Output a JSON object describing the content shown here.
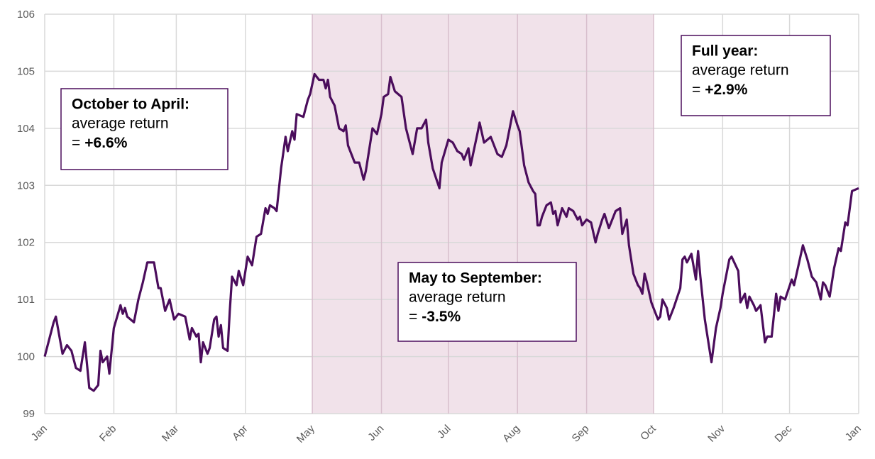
{
  "chart_data": {
    "type": "line",
    "color": "#4b0d5c",
    "grid": true,
    "xlim": [
      0,
      365
    ],
    "ylim": [
      99,
      106
    ],
    "yticks": [
      99,
      100,
      101,
      102,
      103,
      104,
      105,
      106
    ],
    "xticks": [
      {
        "value": 0,
        "label": "Jan"
      },
      {
        "value": 31,
        "label": "Feb"
      },
      {
        "value": 59,
        "label": "Mar"
      },
      {
        "value": 90,
        "label": "Apr"
      },
      {
        "value": 120,
        "label": "May"
      },
      {
        "value": 151,
        "label": "Jun"
      },
      {
        "value": 181,
        "label": "Jul"
      },
      {
        "value": 212,
        "label": "Aug"
      },
      {
        "value": 243,
        "label": "Sep"
      },
      {
        "value": 273,
        "label": "Oct"
      },
      {
        "value": 304,
        "label": "Nov"
      },
      {
        "value": 334,
        "label": "Dec"
      },
      {
        "value": 365,
        "label": "Jan"
      }
    ],
    "shaded_range": [
      120,
      273
    ],
    "shade_color": "#f1e2ea",
    "x": [
      0,
      4,
      5,
      8,
      10,
      12,
      14,
      16,
      18,
      20,
      22,
      24,
      25,
      26,
      28,
      29,
      31,
      34,
      35,
      36,
      37,
      40,
      42,
      44,
      46,
      49,
      51,
      52,
      54,
      56,
      58,
      60,
      63,
      65,
      66,
      68,
      69,
      70,
      71,
      73,
      74,
      76,
      77,
      78,
      79,
      80,
      82,
      83,
      84,
      86,
      87,
      89,
      91,
      93,
      95,
      97,
      99,
      100,
      101,
      103,
      104,
      106,
      108,
      109,
      111,
      112,
      113,
      116,
      118,
      119,
      121,
      123,
      125,
      126,
      127,
      128,
      130,
      132,
      134,
      135,
      136,
      137,
      139,
      141,
      143,
      144,
      146,
      147,
      149,
      151,
      152,
      154,
      155,
      157,
      160,
      162,
      165,
      167,
      169,
      171,
      172,
      174,
      177,
      178,
      181,
      183,
      185,
      187,
      188,
      190,
      191,
      194,
      195,
      197,
      200,
      203,
      205,
      207,
      210,
      212,
      213,
      215,
      217,
      219,
      220,
      221,
      222,
      223,
      225,
      227,
      228,
      229,
      230,
      232,
      234,
      235,
      237,
      239,
      240,
      241,
      243,
      245,
      247,
      248,
      250,
      251,
      253,
      256,
      258,
      259,
      261,
      262,
      264,
      266,
      267,
      268,
      269,
      270,
      272,
      273,
      275,
      276,
      277,
      279,
      280,
      282,
      285,
      286,
      287,
      288,
      290,
      292,
      293,
      294,
      296,
      299,
      301,
      303,
      304,
      307,
      308,
      311,
      312,
      314,
      315,
      316,
      318,
      319,
      321,
      323,
      324,
      326,
      328,
      329,
      330,
      332,
      335,
      336,
      338,
      340,
      342,
      344,
      346,
      348,
      349,
      350,
      352,
      354,
      356,
      357,
      359,
      360,
      362,
      365
    ],
    "values": [
      100.0,
      100.6,
      100.7,
      100.05,
      100.2,
      100.1,
      99.8,
      99.75,
      100.25,
      99.45,
      99.4,
      99.5,
      100.1,
      99.9,
      100.0,
      99.7,
      100.5,
      100.9,
      100.75,
      100.85,
      100.7,
      100.6,
      101.0,
      101.3,
      101.65,
      101.65,
      101.2,
      101.2,
      100.8,
      101.0,
      100.65,
      100.75,
      100.7,
      100.3,
      100.5,
      100.35,
      100.4,
      99.9,
      100.25,
      100.05,
      100.15,
      100.65,
      100.7,
      100.35,
      100.55,
      100.15,
      100.1,
      100.8,
      101.4,
      101.25,
      101.5,
      101.25,
      101.75,
      101.6,
      102.1,
      102.15,
      102.6,
      102.5,
      102.65,
      102.6,
      102.55,
      103.3,
      103.85,
      103.6,
      103.95,
      103.8,
      104.25,
      104.2,
      104.5,
      104.6,
      104.95,
      104.85,
      104.85,
      104.7,
      104.85,
      104.55,
      104.4,
      104.0,
      103.95,
      104.05,
      103.7,
      103.6,
      103.4,
      103.4,
      103.1,
      103.25,
      103.75,
      104.0,
      103.9,
      104.25,
      104.55,
      104.6,
      104.9,
      104.65,
      104.55,
      104.0,
      103.55,
      104.0,
      104.0,
      104.15,
      103.75,
      103.3,
      102.95,
      103.4,
      103.8,
      103.75,
      103.6,
      103.55,
      103.45,
      103.65,
      103.35,
      103.9,
      104.1,
      103.75,
      103.85,
      103.55,
      103.5,
      103.7,
      104.3,
      104.05,
      103.95,
      103.35,
      103.05,
      102.9,
      102.85,
      102.3,
      102.3,
      102.45,
      102.65,
      102.7,
      102.5,
      102.55,
      102.3,
      102.6,
      102.45,
      102.6,
      102.55,
      102.4,
      102.45,
      102.3,
      102.4,
      102.35,
      102.0,
      102.15,
      102.4,
      102.5,
      102.25,
      102.55,
      102.6,
      102.15,
      102.4,
      101.95,
      101.45,
      101.25,
      101.2,
      101.1,
      101.45,
      101.3,
      100.95,
      100.85,
      100.65,
      100.7,
      101.0,
      100.85,
      100.65,
      100.85,
      101.2,
      101.7,
      101.75,
      101.65,
      101.8,
      101.35,
      101.85,
      101.4,
      100.65,
      99.9,
      100.5,
      100.85,
      101.1,
      101.7,
      101.75,
      101.5,
      100.95,
      101.1,
      100.85,
      101.05,
      100.9,
      100.8,
      100.9,
      100.25,
      100.35,
      100.35,
      101.1,
      100.8,
      101.05,
      101.0,
      101.35,
      101.25,
      101.6,
      101.95,
      101.7,
      101.4,
      101.3,
      101.0,
      101.3,
      101.25,
      101.05,
      101.55,
      101.9,
      101.85,
      102.35,
      102.3,
      102.9,
      102.95
    ],
    "annotations": [
      {
        "heading": "October to April:",
        "text": "average return",
        "prefix": "=",
        "value": "+6.6%"
      },
      {
        "heading": "May to September:",
        "text": "average return",
        "prefix": "=",
        "value": "-3.5%"
      },
      {
        "heading": "Full year:",
        "text": "average return",
        "prefix": "=",
        "value": "+2.9%"
      }
    ]
  }
}
